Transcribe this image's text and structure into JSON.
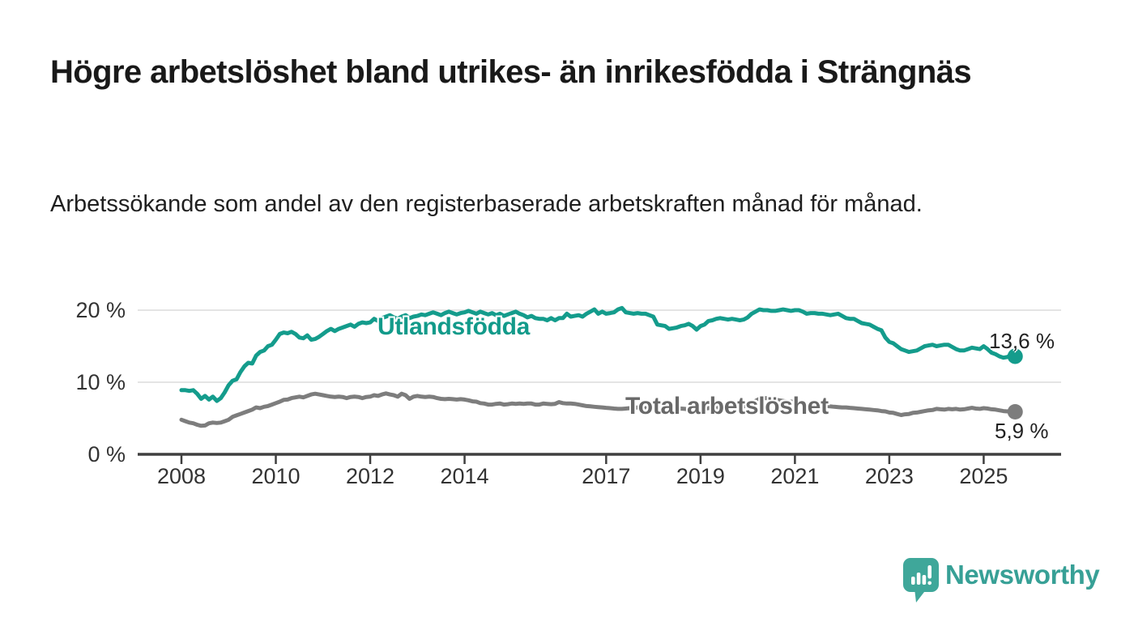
{
  "header": {
    "title": "Högre arbetslöshet bland utrikes- än inrikesfödda i Strängnäs",
    "subtitle": "Arbetssökande som andel av den registerbaserade arbetskraften månad för månad."
  },
  "chart_data": {
    "type": "line",
    "x_start": "2008-01",
    "x_end": "2025-09",
    "x_ticks": [
      2008,
      2010,
      2012,
      2014,
      2017,
      2019,
      2021,
      2023,
      2025
    ],
    "y_ticks": [
      {
        "value": 0,
        "label": "0 %"
      },
      {
        "value": 10,
        "label": "10 %"
      },
      {
        "value": 20,
        "label": "20 %"
      }
    ],
    "ylim": [
      0,
      22
    ],
    "grid": "horizontal",
    "colors": {
      "grid": "#dcdcdc",
      "axis": "#3f3f3f",
      "tick_text": "#333333"
    },
    "series": [
      {
        "name": "Utlandsfödda",
        "color": "#149c8c",
        "label_color": "#129a8a",
        "end_label": "13,6 %",
        "end_value": 13.6,
        "values": [
          8.9,
          8.9,
          8.8,
          8.9,
          8.4,
          7.7,
          8.1,
          7.6,
          8.0,
          7.4,
          7.8,
          8.6,
          9.6,
          10.2,
          10.4,
          11.4,
          12.2,
          12.7,
          12.6,
          13.7,
          14.2,
          14.4,
          15.0,
          15.2,
          15.9,
          16.7,
          16.9,
          16.8,
          17.0,
          16.7,
          16.2,
          16.1,
          16.5,
          15.9,
          16.0,
          16.3,
          16.7,
          17.1,
          17.4,
          17.1,
          17.4,
          17.6,
          17.8,
          18.0,
          17.7,
          18.1,
          18.3,
          18.2,
          18.3,
          18.8,
          18.5,
          18.9,
          19.1,
          19.3,
          19.0,
          18.8,
          19.1,
          19.3,
          18.9,
          19.1,
          19.2,
          19.4,
          19.3,
          19.5,
          19.7,
          19.5,
          19.3,
          19.6,
          19.8,
          19.6,
          19.4,
          19.6,
          19.7,
          19.9,
          19.7,
          19.5,
          19.8,
          19.6,
          19.4,
          19.6,
          19.3,
          19.5,
          19.2,
          19.4,
          19.6,
          19.8,
          19.5,
          19.3,
          19.0,
          19.2,
          18.9,
          18.8,
          18.8,
          18.6,
          18.9,
          18.6,
          18.9,
          18.9,
          19.5,
          19.1,
          19.2,
          19.3,
          19.1,
          19.5,
          19.8,
          20.1,
          19.5,
          19.8,
          19.5,
          19.6,
          19.7,
          20.1,
          20.3,
          19.7,
          19.6,
          19.5,
          19.6,
          19.5,
          19.5,
          19.3,
          19.1,
          18.0,
          17.9,
          17.8,
          17.4,
          17.5,
          17.6,
          17.8,
          17.9,
          18.1,
          17.8,
          17.3,
          17.8,
          18.0,
          18.5,
          18.6,
          18.8,
          18.9,
          18.8,
          18.7,
          18.8,
          18.7,
          18.6,
          18.7,
          19.0,
          19.5,
          19.8,
          20.1,
          20.0,
          20.0,
          19.9,
          19.9,
          20.0,
          20.1,
          20.0,
          19.9,
          20.0,
          20.0,
          19.8,
          19.5,
          19.6,
          19.6,
          19.5,
          19.5,
          19.4,
          19.3,
          19.4,
          19.5,
          19.2,
          18.9,
          18.8,
          18.8,
          18.5,
          18.2,
          18.1,
          18.0,
          17.7,
          17.4,
          17.2,
          16.2,
          15.6,
          15.4,
          15.0,
          14.6,
          14.4,
          14.2,
          14.3,
          14.4,
          14.7,
          15.0,
          15.1,
          15.2,
          15.0,
          15.1,
          15.2,
          15.2,
          14.9,
          14.6,
          14.4,
          14.4,
          14.6,
          14.8,
          14.7,
          14.6,
          15.0,
          14.6,
          14.1,
          13.9,
          13.6,
          13.4,
          13.5,
          13.8,
          13.6
        ]
      },
      {
        "name": "Total arbetslöshet",
        "color": "#7d7d7d",
        "label_color": "#696969",
        "end_label": "5,9 %",
        "end_value": 5.9,
        "values": [
          4.8,
          4.6,
          4.4,
          4.3,
          4.1,
          3.95,
          4.0,
          4.3,
          4.4,
          4.35,
          4.4,
          4.6,
          4.8,
          5.2,
          5.4,
          5.6,
          5.8,
          6.0,
          6.2,
          6.5,
          6.4,
          6.6,
          6.7,
          6.9,
          7.1,
          7.3,
          7.55,
          7.6,
          7.8,
          7.9,
          8.0,
          7.9,
          8.1,
          8.3,
          8.4,
          8.3,
          8.2,
          8.1,
          8.0,
          7.95,
          8.0,
          7.95,
          7.8,
          7.95,
          8.0,
          7.95,
          7.8,
          7.95,
          8.0,
          8.2,
          8.1,
          8.3,
          8.45,
          8.3,
          8.2,
          8.0,
          8.4,
          8.2,
          7.7,
          8.0,
          8.1,
          8.0,
          7.95,
          8.0,
          7.95,
          7.8,
          7.7,
          7.65,
          7.7,
          7.65,
          7.6,
          7.65,
          7.6,
          7.5,
          7.35,
          7.3,
          7.1,
          7.05,
          6.9,
          6.9,
          7.0,
          7.05,
          6.9,
          6.95,
          7.05,
          7.0,
          7.05,
          7.0,
          7.05,
          7.05,
          6.9,
          6.9,
          7.05,
          7.0,
          6.95,
          7.0,
          7.25,
          7.1,
          7.05,
          7.05,
          7.0,
          6.9,
          6.8,
          6.7,
          6.65,
          6.6,
          6.55,
          6.5,
          6.45,
          6.4,
          6.35,
          6.3,
          6.3,
          6.35,
          6.4,
          6.45,
          6.5,
          6.45,
          6.4,
          6.45,
          6.4,
          6.35,
          6.3,
          6.25,
          6.2,
          6.25,
          6.3,
          6.35,
          6.3,
          6.25,
          6.2,
          6.25,
          6.3,
          6.35,
          6.4,
          6.45,
          6.5,
          6.55,
          6.6,
          6.65,
          6.6,
          6.55,
          6.6,
          6.65,
          6.8,
          7.0,
          7.4,
          7.7,
          7.8,
          7.8,
          7.7,
          7.6,
          7.5,
          7.4,
          7.3,
          7.3,
          7.3,
          7.2,
          7.1,
          7.0,
          6.9,
          6.85,
          6.8,
          6.75,
          6.7,
          6.65,
          6.6,
          6.55,
          6.5,
          6.5,
          6.45,
          6.4,
          6.35,
          6.3,
          6.25,
          6.2,
          6.15,
          6.1,
          6.0,
          5.95,
          5.8,
          5.75,
          5.6,
          5.45,
          5.55,
          5.6,
          5.75,
          5.8,
          5.9,
          6.0,
          6.1,
          6.15,
          6.3,
          6.25,
          6.2,
          6.3,
          6.25,
          6.3,
          6.2,
          6.25,
          6.35,
          6.45,
          6.35,
          6.3,
          6.4,
          6.35,
          6.25,
          6.2,
          6.1,
          6.0,
          5.95,
          6.0,
          5.9
        ]
      }
    ]
  },
  "footer": {
    "brand": "Newsworthy",
    "brand_color": "#37a096",
    "logo_color": "#3fa79a"
  }
}
